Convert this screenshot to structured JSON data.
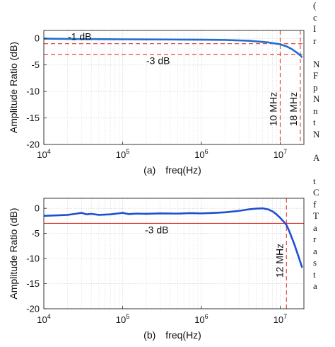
{
  "side_text": [
    "(",
    "c",
    "I",
    "r",
    "",
    "N",
    "F",
    "p",
    "N",
    "n",
    "t",
    "N",
    "",
    "A",
    "",
    "t",
    "C",
    "f",
    "T",
    "a",
    "r",
    "a",
    "s",
    "t",
    "a"
  ],
  "chart_data": [
    {
      "type": "line",
      "panel_label": "(a)",
      "xlabel": "freq(Hz)",
      "ylabel": "Amplitude Ratio (dB)",
      "xscale": "log",
      "xlim": [
        10000,
        20000000
      ],
      "ylim": [
        -20,
        1.5
      ],
      "yticks": [
        0,
        -5,
        -10,
        -15,
        -20
      ],
      "xticks": [
        {
          "value": 10000,
          "base": "10",
          "exp": "4"
        },
        {
          "value": 100000,
          "base": "10",
          "exp": "5"
        },
        {
          "value": 1000000,
          "base": "10",
          "exp": "6"
        },
        {
          "value": 10000000,
          "base": "10",
          "exp": "7"
        }
      ],
      "grid": true,
      "series": [
        {
          "color": "#1f6fd1",
          "x": [
            10000,
            15000,
            30000,
            60000,
            100000,
            200000,
            500000,
            1000000,
            2000000,
            4000000,
            7000000,
            10000000,
            12000000,
            14000000,
            16000000,
            18000000,
            19000000
          ],
          "y": [
            -0.05,
            -0.08,
            -0.12,
            -0.15,
            -0.17,
            -0.2,
            -0.22,
            -0.25,
            -0.3,
            -0.45,
            -0.75,
            -1.1,
            -1.5,
            -2.0,
            -2.6,
            -3.2,
            -3.6
          ]
        }
      ],
      "hlines": [
        {
          "y": -1,
          "label": "-1 dB",
          "color": "#e0362c",
          "style": "dashed"
        },
        {
          "y": -3,
          "label": "-3 dB",
          "color": "#e0362c",
          "style": "dashed"
        }
      ],
      "vlines": [
        {
          "x": 10000000,
          "label": "10 MHz",
          "color": "#e0362c",
          "style": "dashed"
        },
        {
          "x": 18000000,
          "label": "18 MHz",
          "color": "#e0362c",
          "style": "dashed"
        }
      ]
    },
    {
      "type": "line",
      "panel_label": "(b)",
      "xlabel": "freq(Hz)",
      "ylabel": "Amplitude Ratio (dB)",
      "xscale": "log",
      "xlim": [
        10000,
        20000000
      ],
      "ylim": [
        -20,
        2
      ],
      "yticks": [
        0,
        -5,
        -10,
        -15,
        -20
      ],
      "xticks": [
        {
          "value": 10000,
          "base": "10",
          "exp": "4"
        },
        {
          "value": 100000,
          "base": "10",
          "exp": "5"
        },
        {
          "value": 1000000,
          "base": "10",
          "exp": "6"
        },
        {
          "value": 10000000,
          "base": "10",
          "exp": "7"
        }
      ],
      "grid": true,
      "series": [
        {
          "color": "#1f4fd1",
          "x": [
            10000,
            15000,
            20000,
            25000,
            30000,
            35000,
            40000,
            50000,
            70000,
            90000,
            100000,
            120000,
            150000,
            200000,
            300000,
            500000,
            700000,
            1000000,
            1500000,
            2000000,
            3000000,
            4000000,
            5000000,
            6000000,
            7000000,
            8000000,
            9000000,
            10000000,
            11000000,
            12000000,
            13000000,
            15000000,
            17000000,
            19000000
          ],
          "y": [
            -1.5,
            -1.4,
            -1.3,
            -1.1,
            -0.9,
            -1.2,
            -1.1,
            -1.3,
            -1.2,
            -1.0,
            -0.9,
            -1.15,
            -1.05,
            -1.1,
            -1.0,
            -1.05,
            -0.95,
            -1.0,
            -0.9,
            -0.8,
            -0.5,
            -0.2,
            -0.05,
            0.0,
            -0.2,
            -0.6,
            -1.2,
            -1.9,
            -2.6,
            -3.3,
            -4.5,
            -7.0,
            -9.5,
            -11.8
          ]
        }
      ],
      "hlines": [
        {
          "y": -3,
          "label": "-3 dB",
          "color": "#e0362c",
          "style": "solid"
        }
      ],
      "vlines": [
        {
          "x": 12000000,
          "label": "12 MHz",
          "color": "#e0362c",
          "style": "dashed"
        }
      ]
    }
  ]
}
